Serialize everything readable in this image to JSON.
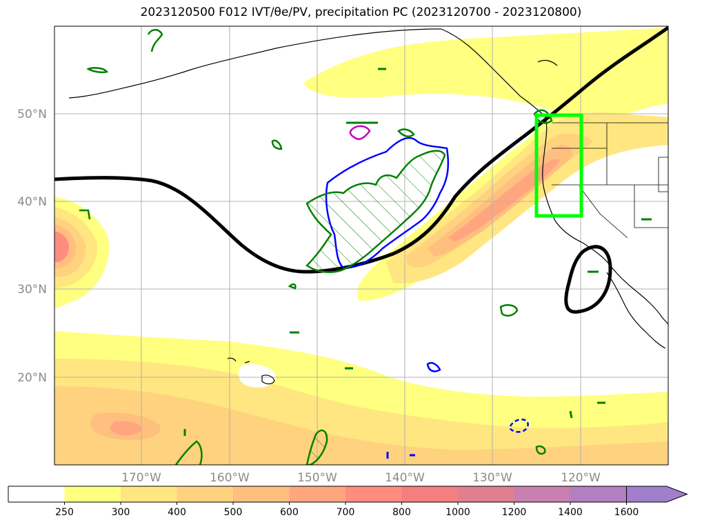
{
  "title": "2023120500 F012 IVT/θe/PV, precipitation PC (2023120700 - 2023120800)",
  "map": {
    "lat_labels": [
      "50°N",
      "40°N",
      "30°N",
      "20°N"
    ],
    "lon_labels": [
      "170°W",
      "160°W",
      "150°W",
      "140°W",
      "130°W",
      "120°W"
    ],
    "extent": {
      "lon_min": -180,
      "lon_max": -110,
      "lat_min": 10,
      "lat_max": 60
    },
    "highlight_box": {
      "lon_min": -125,
      "lon_max": -120,
      "lat_min": 38,
      "lat_max": 50,
      "color": "#00ff00"
    },
    "colors": {
      "theta_e_contour": "#000000",
      "pv_contour": "#0000ff",
      "precip_contour": "#008000",
      "magenta_contour": "#c000c0"
    }
  },
  "colorbar": {
    "ticks": [
      "250",
      "300",
      "400",
      "500",
      "600",
      "700",
      "800",
      "1000",
      "1200",
      "1400",
      "1600"
    ],
    "colors": [
      "#ffffff",
      "#ffff80",
      "#ffe680",
      "#ffd27f",
      "#ffbf7f",
      "#ffa67f",
      "#ff8c7f",
      "#f47f80",
      "#df7f90",
      "#c97fb0",
      "#b27fc0",
      "#a07fcc"
    ],
    "extend": "max"
  }
}
